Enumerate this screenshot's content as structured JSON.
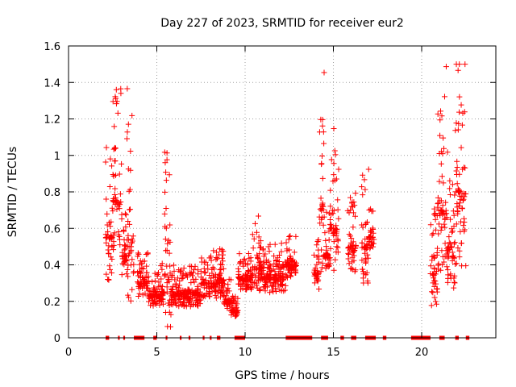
{
  "chart_data": {
    "type": "scatter",
    "title": "Day 227 of 2023, SRMTID for receiver eur2",
    "xlabel": "GPS time / hours",
    "ylabel": "SRMTID / TECUs",
    "xlim": [
      0,
      24.2
    ],
    "ylim": [
      0,
      1.6
    ],
    "x_ticks": [
      0,
      5,
      10,
      15,
      20
    ],
    "y_ticks": [
      0,
      0.2,
      0.4,
      0.6,
      0.8,
      1,
      1.2,
      1.4,
      1.6
    ],
    "x_tick_labels": [
      "0",
      "5",
      "10",
      "15",
      "20"
    ],
    "y_tick_labels": [
      "0",
      "0.2",
      "0.4",
      "0.6",
      "0.8",
      "1",
      "1.2",
      "1.4",
      "1.6"
    ],
    "grid": true,
    "marker": "+",
    "color": "#ff0000",
    "clusters": [
      {
        "x_range": [
          2.1,
          2.5
        ],
        "y_base": 0.55,
        "y_spread": 0.35
      },
      {
        "x_range": [
          2.5,
          3.0
        ],
        "y_base": 0.75,
        "y_spread": 0.4
      },
      {
        "x_range": [
          3.0,
          3.3
        ],
        "y_base": 0.45,
        "y_spread": 0.15
      },
      {
        "x_range": [
          3.3,
          3.7
        ],
        "y_base": 0.5,
        "y_spread": 0.6
      },
      {
        "x_range": [
          3.9,
          4.5
        ],
        "y_base": 0.3,
        "y_spread": 0.12
      },
      {
        "x_range": [
          4.5,
          5.2
        ],
        "y_base": 0.23,
        "y_spread": 0.08
      },
      {
        "x_range": [
          5.2,
          5.4
        ],
        "y_base": 0.25,
        "y_spread": 0.1
      },
      {
        "x_range": [
          5.4,
          5.8
        ],
        "y_base": 0.35,
        "y_spread": 0.45
      },
      {
        "x_range": [
          5.8,
          7.5
        ],
        "y_base": 0.24,
        "y_spread": 0.1
      },
      {
        "x_range": [
          7.5,
          8.8
        ],
        "y_base": 0.3,
        "y_spread": 0.12
      },
      {
        "x_range": [
          8.8,
          9.2
        ],
        "y_base": 0.2,
        "y_spread": 0.08
      },
      {
        "x_range": [
          9.2,
          9.6
        ],
        "y_base": 0.15,
        "y_spread": 0.05
      },
      {
        "x_range": [
          9.6,
          10.4
        ],
        "y_base": 0.33,
        "y_spread": 0.1
      },
      {
        "x_range": [
          10.4,
          11.0
        ],
        "y_base": 0.38,
        "y_spread": 0.18
      },
      {
        "x_range": [
          11.0,
          12.3
        ],
        "y_base": 0.33,
        "y_spread": 0.12
      },
      {
        "x_range": [
          12.3,
          12.9
        ],
        "y_base": 0.4,
        "y_spread": 0.1
      },
      {
        "x_range": [
          13.9,
          14.2
        ],
        "y_base": 0.35,
        "y_spread": 0.12
      },
      {
        "x_range": [
          14.2,
          14.5
        ],
        "y_base": 0.7,
        "y_spread": 0.5
      },
      {
        "x_range": [
          14.5,
          14.8
        ],
        "y_base": 0.45,
        "y_spread": 0.15
      },
      {
        "x_range": [
          14.8,
          15.3
        ],
        "y_base": 0.6,
        "y_spread": 0.35
      },
      {
        "x_range": [
          15.8,
          16.3
        ],
        "y_base": 0.5,
        "y_spread": 0.2
      },
      {
        "x_range": [
          16.6,
          17.0
        ],
        "y_base": 0.5,
        "y_spread": 0.3
      },
      {
        "x_range": [
          17.0,
          17.3
        ],
        "y_base": 0.55,
        "y_spread": 0.1
      },
      {
        "x_range": [
          20.5,
          20.9
        ],
        "y_base": 0.35,
        "y_spread": 0.25
      },
      {
        "x_range": [
          20.9,
          21.4
        ],
        "y_base": 0.7,
        "y_spread": 0.5
      },
      {
        "x_range": [
          21.4,
          21.9
        ],
        "y_base": 0.5,
        "y_spread": 0.35
      },
      {
        "x_range": [
          21.9,
          22.5
        ],
        "y_base": 0.8,
        "y_spread": 0.6
      }
    ],
    "zero_value_spans": [
      [
        2.1,
        2.3
      ],
      [
        2.8,
        2.9
      ],
      [
        3.1,
        3.2
      ],
      [
        3.7,
        4.3
      ],
      [
        4.8,
        5.0
      ],
      [
        5.5,
        5.6
      ],
      [
        6.3,
        6.4
      ],
      [
        6.8,
        6.9
      ],
      [
        7.6,
        7.7
      ],
      [
        8.0,
        8.1
      ],
      [
        8.4,
        8.6
      ],
      [
        9.4,
        10.0
      ],
      [
        12.3,
        13.8
      ],
      [
        14.3,
        14.7
      ],
      [
        15.4,
        15.6
      ],
      [
        16.0,
        16.3
      ],
      [
        16.8,
        17.4
      ],
      [
        17.8,
        18.0
      ],
      [
        19.4,
        20.5
      ],
      [
        21.0,
        21.3
      ],
      [
        21.9,
        22.1
      ],
      [
        22.5,
        22.7
      ]
    ]
  }
}
